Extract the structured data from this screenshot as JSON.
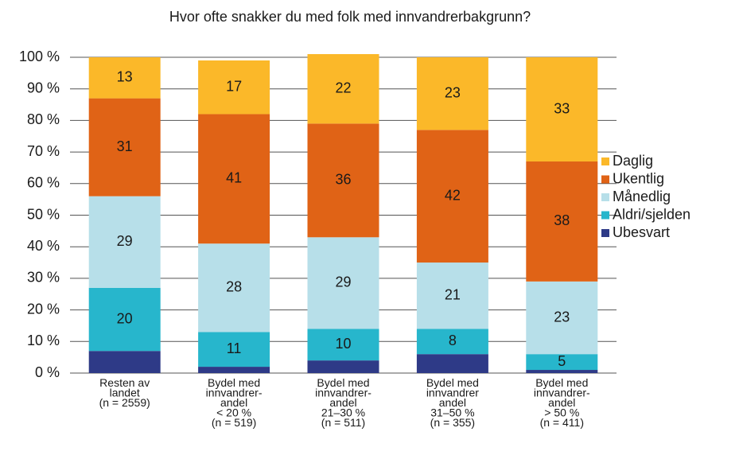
{
  "chart_data": {
    "type": "stacked_bar",
    "title": "Hvor ofte snakker du med folk med innvandrerbakgrunn?",
    "categories": [
      "Resten av\nlandet\n(n = 2559)",
      "Bydel med\ninnvandrer-\nandel\n< 20 %\n(n = 519)",
      "Bydel med\ninnvandrer-\nandel\n21–30 %\n(n = 511)",
      "Bydel med\ninnvandrer\nandel\n31–50 %\n(n = 355)",
      "Bydel med\ninnvandrer-\nandel\n> 50 %\n(n = 411)"
    ],
    "series": [
      {
        "name": "Ubesvart",
        "color": "#2e3a87",
        "values": [
          7,
          2,
          4,
          6,
          1
        ],
        "data_labels": false
      },
      {
        "name": "Aldri/sjelden",
        "color": "#27b6cc",
        "values": [
          20,
          11,
          10,
          8,
          5
        ],
        "data_labels": true
      },
      {
        "name": "Månedlig",
        "color": "#b7dfe9",
        "values": [
          29,
          28,
          29,
          21,
          23
        ],
        "data_labels": true
      },
      {
        "name": "Ukentlig",
        "color": "#e06316",
        "values": [
          31,
          41,
          36,
          42,
          38
        ],
        "data_labels": true
      },
      {
        "name": "Daglig",
        "color": "#fbb829",
        "values": [
          13,
          17,
          22,
          23,
          33
        ],
        "data_labels": true
      }
    ],
    "ylim": [
      0,
      100
    ],
    "yticks": [
      {
        "value": 0,
        "label": "0 %"
      },
      {
        "value": 10,
        "label": "10 %"
      },
      {
        "value": 20,
        "label": "20 %"
      },
      {
        "value": 30,
        "label": "30 %"
      },
      {
        "value": 40,
        "label": "40 %"
      },
      {
        "value": 50,
        "label": "50 %"
      },
      {
        "value": 60,
        "label": "60 %"
      },
      {
        "value": 70,
        "label": "70 %"
      },
      {
        "value": 80,
        "label": "80 %"
      },
      {
        "value": 90,
        "label": "90 %"
      },
      {
        "value": 100,
        "label": "100 %"
      }
    ],
    "grid": true,
    "legend": "right"
  }
}
